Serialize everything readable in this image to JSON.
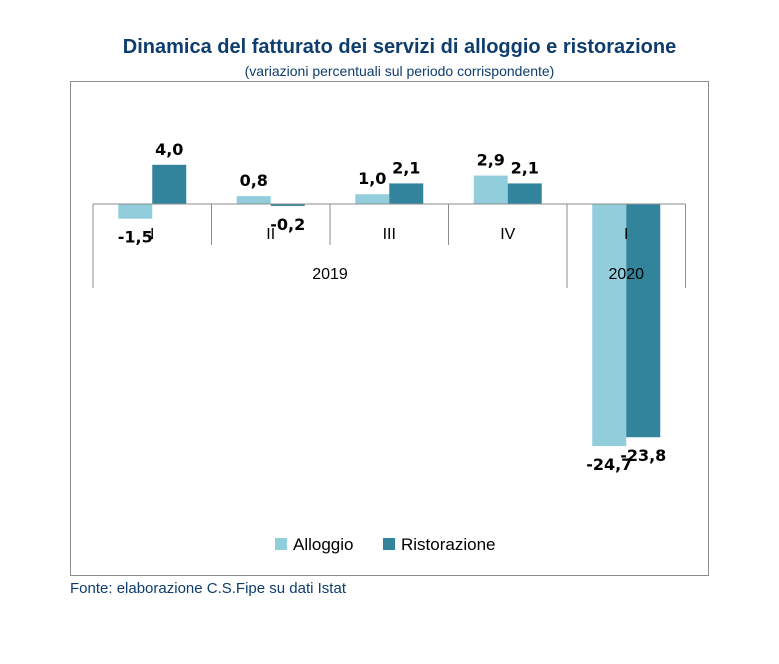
{
  "chart_data": {
    "type": "bar",
    "title": "Dinamica del fatturato dei servizi di alloggio e ristorazione",
    "subtitle": "(variazioni percentuali sul periodo corrispondente)",
    "categories": [
      "I",
      "II",
      "III",
      "IV",
      "I"
    ],
    "groups": [
      {
        "label": "2019",
        "categories": [
          "I",
          "II",
          "III",
          "IV"
        ]
      },
      {
        "label": "2020",
        "categories": [
          "I"
        ]
      }
    ],
    "series": [
      {
        "name": "Alloggio",
        "color": "#92cddc",
        "values": [
          -1.5,
          0.8,
          1.0,
          2.9,
          -24.7
        ],
        "labels": [
          "-1,5",
          "0,8",
          "1,0",
          "2,9",
          "-24,7"
        ]
      },
      {
        "name": "Ristorazione",
        "color": "#31849b",
        "values": [
          4.0,
          -0.2,
          2.1,
          2.1,
          -23.8
        ],
        "labels": [
          "4,0",
          "-0,2",
          "2,1",
          "2,1",
          "-23,8"
        ]
      }
    ],
    "legend": "bottom",
    "grid": false
  },
  "source": "Fonte: elaborazione C.S.Fipe su dati Istat"
}
